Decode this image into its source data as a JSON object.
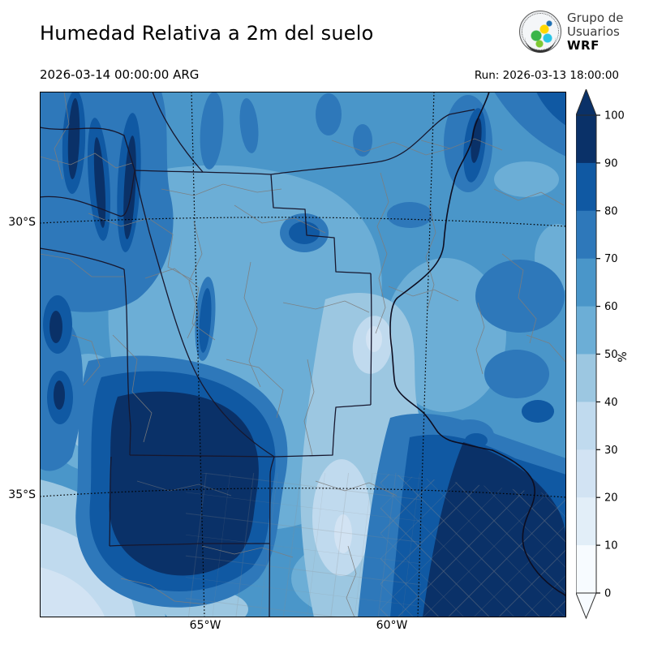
{
  "header": {
    "title": "Humedad Relativa a 2m del suelo",
    "valid_time": "2026-03-14 00:00:00 ARG",
    "run_time": "Run: 2026-03-13 18:00:00"
  },
  "logo": {
    "org_line1": "Grupo de",
    "org_line2": "Usuarios",
    "org_line3": "WRF"
  },
  "map": {
    "lat_labels": [
      "30°S",
      "35°S"
    ],
    "lon_labels": [
      "65°W",
      "60°W"
    ]
  },
  "colorbar": {
    "unit": "%",
    "ticks": [
      "0",
      "10",
      "20",
      "30",
      "40",
      "50",
      "60",
      "70",
      "80",
      "90",
      "100"
    ],
    "bands": [
      {
        "range": "0-10",
        "color": "#f7fbff"
      },
      {
        "range": "10-20",
        "color": "#e2eef8"
      },
      {
        "range": "20-30",
        "color": "#d2e3f3"
      },
      {
        "range": "30-40",
        "color": "#c0daee"
      },
      {
        "range": "40-50",
        "color": "#9cc7e1"
      },
      {
        "range": "50-60",
        "color": "#6caed6"
      },
      {
        "range": "60-70",
        "color": "#4a96c9"
      },
      {
        "range": "70-80",
        "color": "#2e78ba"
      },
      {
        "range": "80-90",
        "color": "#1059a3"
      },
      {
        "range": "90-100",
        "color": "#0a3168"
      }
    ]
  }
}
